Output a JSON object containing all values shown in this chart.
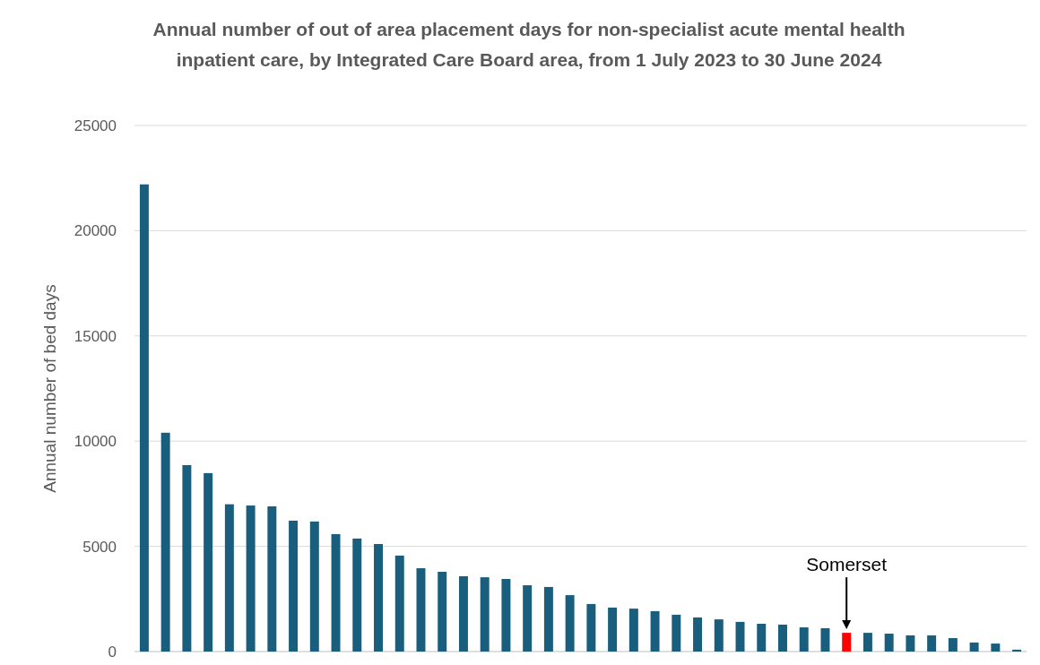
{
  "chart_data": {
    "type": "bar",
    "title": "Annual number of out of area placement days for non-specialist acute mental health inpatient care, by Integrated Care Board area, from 1 July 2023 to 30 June 2024",
    "ylabel": "Annual number of bed days",
    "categories": [
      null,
      null,
      null,
      null,
      null,
      null,
      null,
      null,
      null,
      null,
      null,
      null,
      null,
      null,
      null,
      null,
      null,
      null,
      null,
      null,
      null,
      null,
      null,
      null,
      null,
      null,
      null,
      null,
      null,
      null,
      null,
      null,
      null,
      null,
      null,
      null,
      null,
      null,
      null,
      null,
      null,
      null
    ],
    "values": [
      22200,
      10400,
      8860,
      8480,
      7000,
      6940,
      6900,
      6220,
      6180,
      5580,
      5370,
      5110,
      4560,
      3960,
      3790,
      3580,
      3530,
      3450,
      3150,
      3070,
      2680,
      2260,
      2090,
      2040,
      1920,
      1750,
      1620,
      1530,
      1410,
      1320,
      1280,
      1150,
      1110,
      890,
      890,
      850,
      770,
      770,
      640,
      430,
      380,
      90
    ],
    "colors": [
      "#1a5e7e",
      "#1a5e7e",
      "#1a5e7e",
      "#1a5e7e",
      "#1a5e7e",
      "#1a5e7e",
      "#1a5e7e",
      "#1a5e7e",
      "#1a5e7e",
      "#1a5e7e",
      "#1a5e7e",
      "#1a5e7e",
      "#1a5e7e",
      "#1a5e7e",
      "#1a5e7e",
      "#1a5e7e",
      "#1a5e7e",
      "#1a5e7e",
      "#1a5e7e",
      "#1a5e7e",
      "#1a5e7e",
      "#1a5e7e",
      "#1a5e7e",
      "#1a5e7e",
      "#1a5e7e",
      "#1a5e7e",
      "#1a5e7e",
      "#1a5e7e",
      "#1a5e7e",
      "#1a5e7e",
      "#1a5e7e",
      "#1a5e7e",
      "#1a5e7e",
      "#ff0000",
      "#1a5e7e",
      "#1a5e7e",
      "#1a5e7e",
      "#1a5e7e",
      "#1a5e7e",
      "#1a5e7e",
      "#1a5e7e",
      "#1a5e7e"
    ],
    "annotations": [
      "Somerset"
    ],
    "ylim": [
      0,
      25000
    ],
    "yticks": [
      0,
      5000,
      10000,
      15000,
      20000,
      25000
    ],
    "grid": "y"
  }
}
